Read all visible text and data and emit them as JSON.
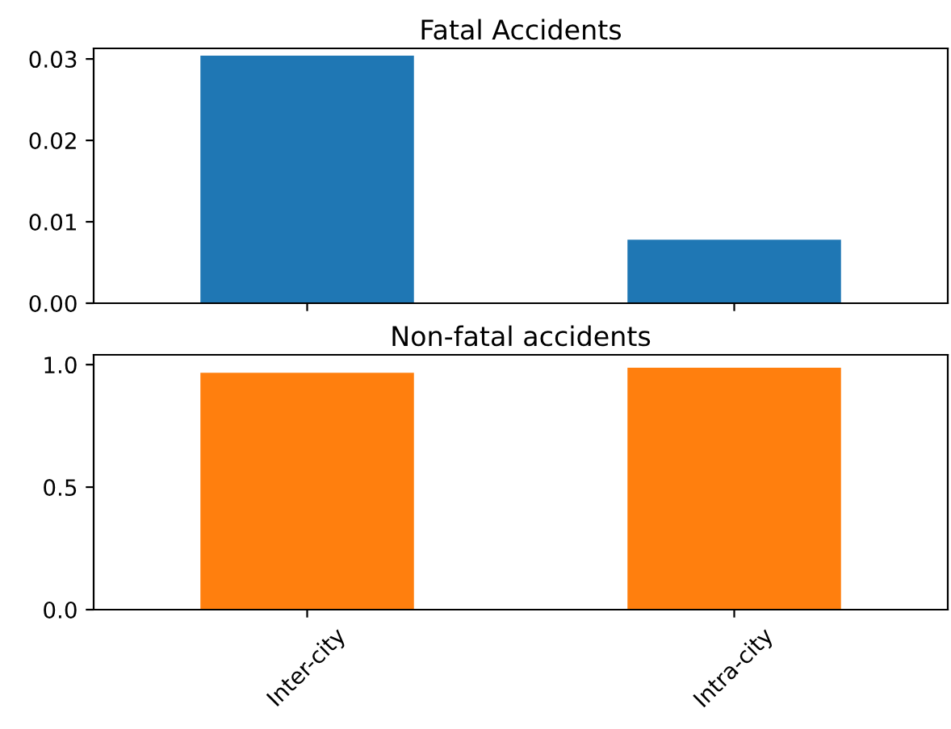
{
  "chart_data": [
    {
      "type": "bar",
      "title": "Fatal Accidents",
      "categories": [
        null,
        null
      ],
      "values": [
        0.0304,
        0.0078
      ],
      "color": "#1f77b4",
      "ylim": [
        0,
        0.0313
      ],
      "yticks": [
        {
          "value": 0,
          "label": "0.00"
        },
        {
          "value": 0.01,
          "label": "0.01"
        },
        {
          "value": 0.02,
          "label": "0.02"
        },
        {
          "value": 0.03,
          "label": "0.03"
        }
      ],
      "tick_labels": "y"
    },
    {
      "type": "bar",
      "title": "Non-fatal accidents",
      "categories": [
        "Inter-city",
        "Intra-city"
      ],
      "values": [
        0.967,
        0.987
      ],
      "color": "#ff7f0e",
      "ylim": [
        0,
        1.04
      ],
      "yticks": [
        {
          "value": 0,
          "label": "0.0"
        },
        {
          "value": 0.5,
          "label": "0.5"
        },
        {
          "value": 1.0,
          "label": "1.0"
        }
      ]
    }
  ]
}
